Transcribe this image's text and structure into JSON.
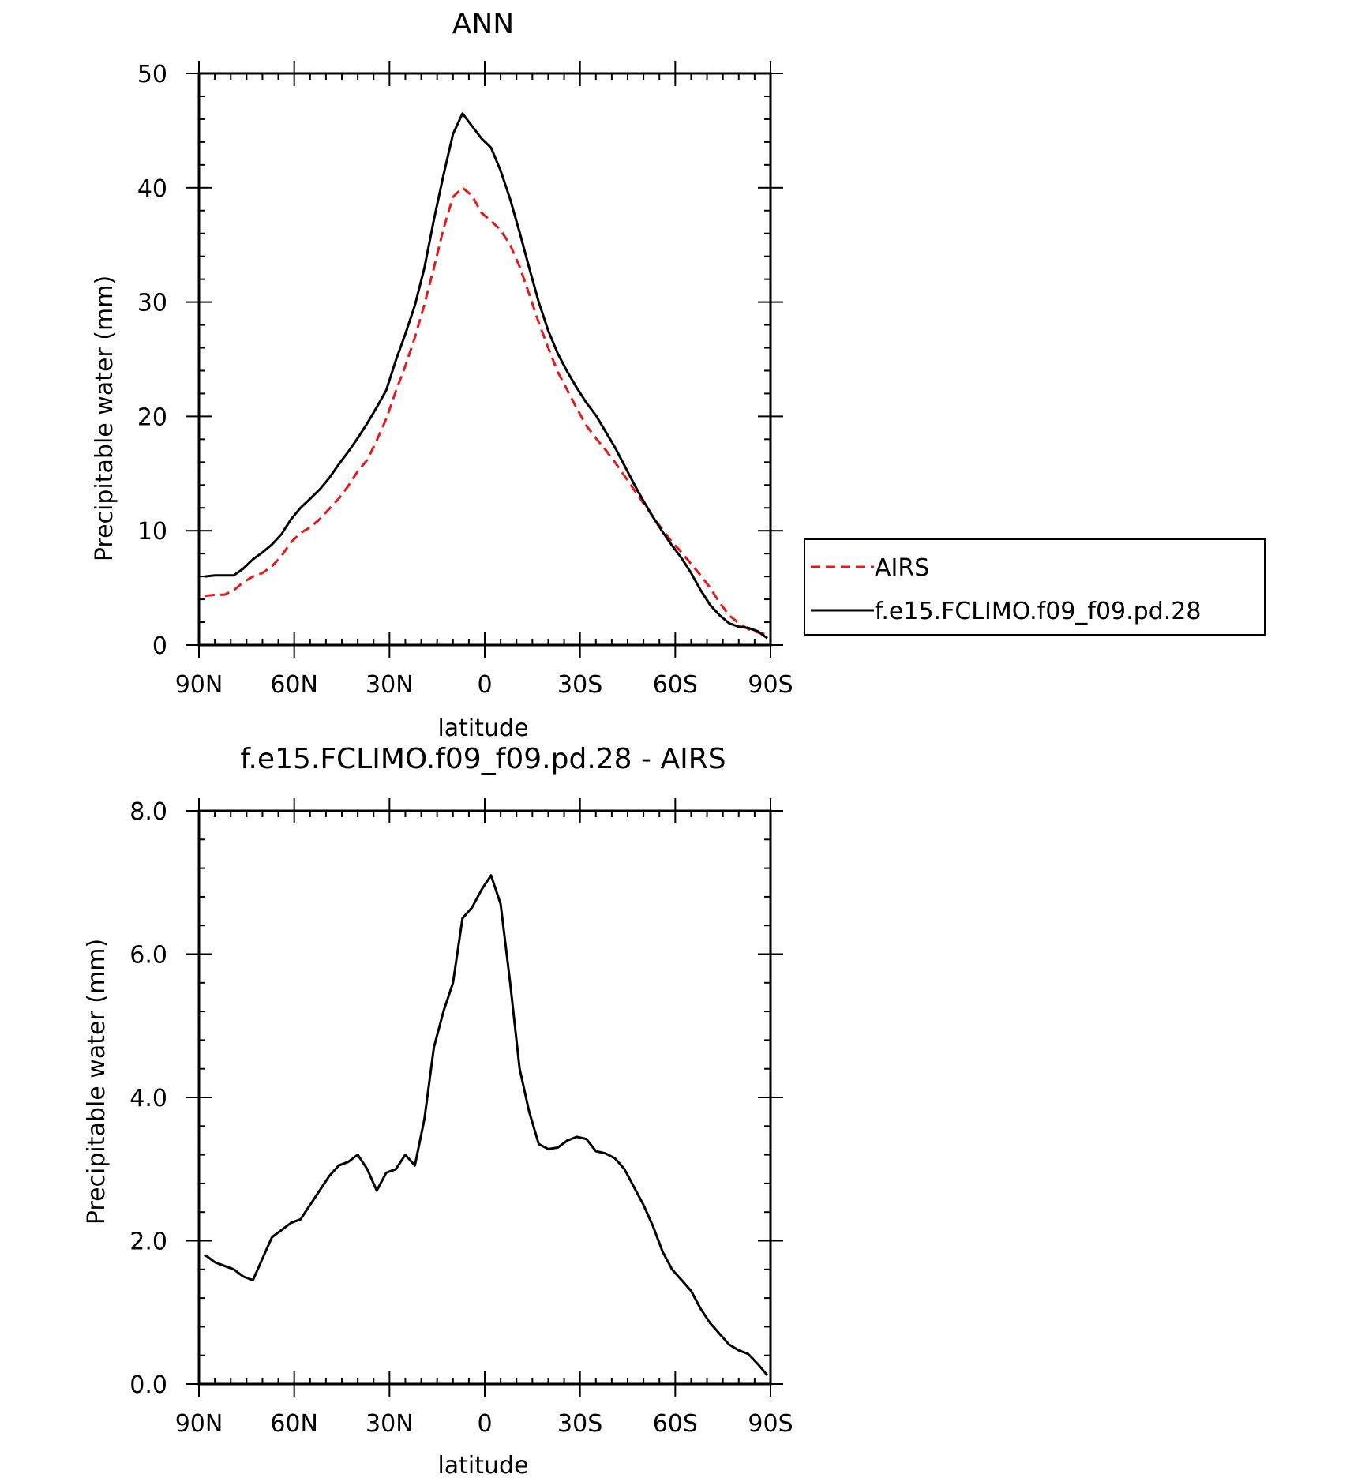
{
  "chart_data": [
    {
      "type": "line",
      "title": "ANN",
      "xlabel": "latitude",
      "ylabel": "Precipitable water (mm)",
      "xlim": [
        -90,
        90
      ],
      "ylim": [
        0,
        50
      ],
      "x_axis_reversed": true,
      "xticks": [
        {
          "value": 90,
          "label": "90N"
        },
        {
          "value": 60,
          "label": "60N"
        },
        {
          "value": 30,
          "label": "30N"
        },
        {
          "value": 0,
          "label": "0"
        },
        {
          "value": -30,
          "label": "30S"
        },
        {
          "value": -60,
          "label": "60S"
        },
        {
          "value": -90,
          "label": "90S"
        }
      ],
      "yticks": [
        {
          "value": 0,
          "label": "0"
        },
        {
          "value": 10,
          "label": "10"
        },
        {
          "value": 20,
          "label": "20"
        },
        {
          "value": 30,
          "label": "30"
        },
        {
          "value": 40,
          "label": "40"
        },
        {
          "value": 50,
          "label": "50"
        }
      ],
      "grid": false,
      "legend": "outside-right",
      "x": [
        88,
        85,
        82,
        79,
        76,
        73,
        70,
        67,
        64,
        61,
        58,
        55,
        52,
        49,
        46,
        43,
        40,
        37,
        34,
        31,
        28,
        25,
        22,
        19,
        16,
        13,
        10,
        7,
        4,
        1,
        -2,
        -5,
        -8,
        -11,
        -14,
        -17,
        -20,
        -23,
        -26,
        -29,
        -32,
        -35,
        -38,
        -41,
        -44,
        -47,
        -50,
        -53,
        -56,
        -59,
        -62,
        -65,
        -68,
        -71,
        -74,
        -77,
        -80,
        -83,
        -86,
        -89
      ],
      "series": [
        {
          "name": "AIRS",
          "color": "#e41a1c",
          "dash": "dashed",
          "values": [
            4.3,
            4.4,
            4.4,
            4.8,
            5.5,
            6.0,
            6.3,
            6.9,
            7.8,
            9.0,
            9.8,
            10.3,
            11.0,
            11.9,
            12.8,
            13.9,
            15.2,
            16.2,
            17.9,
            19.8,
            22.2,
            24.4,
            26.9,
            29.8,
            33.0,
            36.4,
            39.2,
            40.0,
            39.3,
            37.8,
            37.1,
            36.3,
            35.0,
            33.1,
            30.7,
            28.2,
            26.0,
            23.9,
            22.3,
            20.7,
            19.2,
            18.1,
            17.1,
            16.0,
            14.8,
            13.6,
            12.4,
            11.2,
            10.1,
            9.0,
            8.1,
            7.1,
            6.1,
            5.0,
            3.7,
            2.6,
            1.9,
            1.4,
            1.1,
            0.9
          ]
        },
        {
          "name": "f.e15.FCLIMO.f09_f09.pd.28",
          "color": "#000000",
          "dash": "solid",
          "values": [
            6.0,
            6.1,
            6.1,
            6.1,
            6.7,
            7.5,
            8.1,
            8.8,
            9.7,
            11.0,
            12.0,
            12.8,
            13.6,
            14.6,
            15.8,
            16.9,
            18.1,
            19.4,
            20.8,
            22.3,
            24.9,
            27.2,
            29.7,
            33.0,
            37.2,
            41.1,
            44.7,
            46.5,
            45.4,
            44.3,
            43.5,
            41.5,
            39.0,
            36.1,
            33.0,
            30.0,
            27.5,
            25.5,
            23.9,
            22.5,
            21.2,
            20.1,
            18.7,
            17.3,
            15.7,
            14.1,
            12.6,
            11.2,
            9.9,
            8.7,
            7.6,
            6.3,
            4.8,
            3.5,
            2.6,
            1.9,
            1.6,
            1.5,
            1.2,
            0.6
          ]
        }
      ]
    },
    {
      "type": "line",
      "title": "f.e15.FCLIMO.f09_f09.pd.28 - AIRS",
      "xlabel": "latitude",
      "ylabel": "Precipitable water (mm)",
      "xlim": [
        -90,
        90
      ],
      "ylim": [
        0,
        8
      ],
      "x_axis_reversed": true,
      "xticks": [
        {
          "value": 90,
          "label": "90N"
        },
        {
          "value": 60,
          "label": "60N"
        },
        {
          "value": 30,
          "label": "30N"
        },
        {
          "value": 0,
          "label": "0"
        },
        {
          "value": -30,
          "label": "30S"
        },
        {
          "value": -60,
          "label": "60S"
        },
        {
          "value": -90,
          "label": "90S"
        }
      ],
      "yticks": [
        {
          "value": 0,
          "label": "0.0"
        },
        {
          "value": 2,
          "label": "2.0"
        },
        {
          "value": 4,
          "label": "4.0"
        },
        {
          "value": 6,
          "label": "6.0"
        },
        {
          "value": 8,
          "label": "8.0"
        }
      ],
      "grid": false,
      "x": [
        88,
        85,
        82,
        79,
        76,
        73,
        70,
        67,
        64,
        61,
        58,
        55,
        52,
        49,
        46,
        43,
        40,
        37,
        34,
        31,
        28,
        25,
        22,
        19,
        16,
        13,
        10,
        7,
        4,
        1,
        -2,
        -5,
        -8,
        -11,
        -14,
        -17,
        -20,
        -23,
        -26,
        -29,
        -32,
        -35,
        -38,
        -41,
        -44,
        -47,
        -50,
        -53,
        -56,
        -59,
        -62,
        -65,
        -68,
        -71,
        -74,
        -77,
        -80,
        -83,
        -86,
        -89
      ],
      "series": [
        {
          "color": "#000000",
          "dash": "solid",
          "values": [
            1.8,
            1.7,
            1.65,
            1.6,
            1.5,
            1.45,
            1.75,
            2.05,
            2.15,
            2.25,
            2.3,
            2.5,
            2.7,
            2.9,
            3.05,
            3.1,
            3.2,
            3.0,
            2.7,
            2.95,
            3.0,
            3.2,
            3.05,
            3.7,
            4.7,
            5.2,
            5.6,
            6.5,
            6.65,
            6.9,
            7.1,
            6.7,
            5.6,
            4.4,
            3.8,
            3.35,
            3.28,
            3.3,
            3.4,
            3.45,
            3.42,
            3.25,
            3.22,
            3.15,
            3.0,
            2.75,
            2.5,
            2.2,
            1.85,
            1.6,
            1.45,
            1.3,
            1.05,
            0.85,
            0.7,
            0.55,
            0.47,
            0.42,
            0.28,
            0.12
          ]
        }
      ]
    }
  ]
}
